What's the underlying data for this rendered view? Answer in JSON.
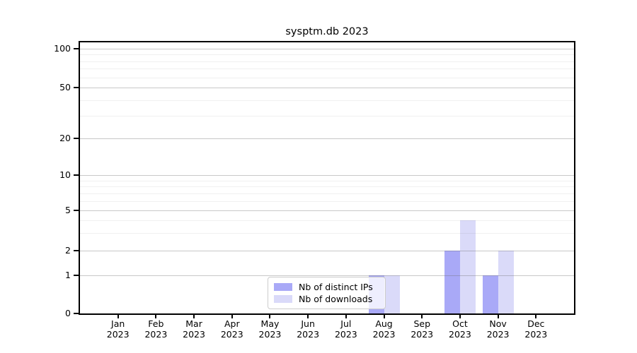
{
  "chart_data": {
    "type": "bar",
    "title": "sysptm.db 2023",
    "categories": [
      "Jan 2023",
      "Feb 2023",
      "Mar 2023",
      "Apr 2023",
      "May 2023",
      "Jun 2023",
      "Jul 2023",
      "Aug 2023",
      "Sep 2023",
      "Oct 2023",
      "Nov 2023",
      "Dec 2023"
    ],
    "series": [
      {
        "name": "Nb of distinct IPs",
        "color": "#a9a9f7",
        "values": [
          0,
          0,
          0,
          0,
          0,
          0,
          0,
          1,
          0,
          2,
          1,
          0
        ]
      },
      {
        "name": "Nb of downloads",
        "color": "#dadaf9",
        "values": [
          0,
          0,
          0,
          0,
          0,
          0,
          0,
          1,
          0,
          4,
          2,
          0
        ]
      }
    ],
    "xlabel": "",
    "ylabel": "",
    "yscale": "symlog",
    "ylim": [
      0,
      112
    ],
    "y_ticks": [
      0,
      1,
      2,
      5,
      10,
      20,
      50,
      100
    ],
    "y_minor_gridlines": [
      3,
      4,
      6,
      7,
      8,
      9,
      30,
      40,
      60,
      70,
      80,
      90
    ],
    "grid": "horizontal",
    "legend": {
      "position": "lower-center-inside"
    },
    "colors": {
      "major_grid": "#cdcdcd",
      "minor_grid": "#efefef",
      "axis": "#000000",
      "legend_border": "#cccccc",
      "background": "#ffffff"
    }
  }
}
